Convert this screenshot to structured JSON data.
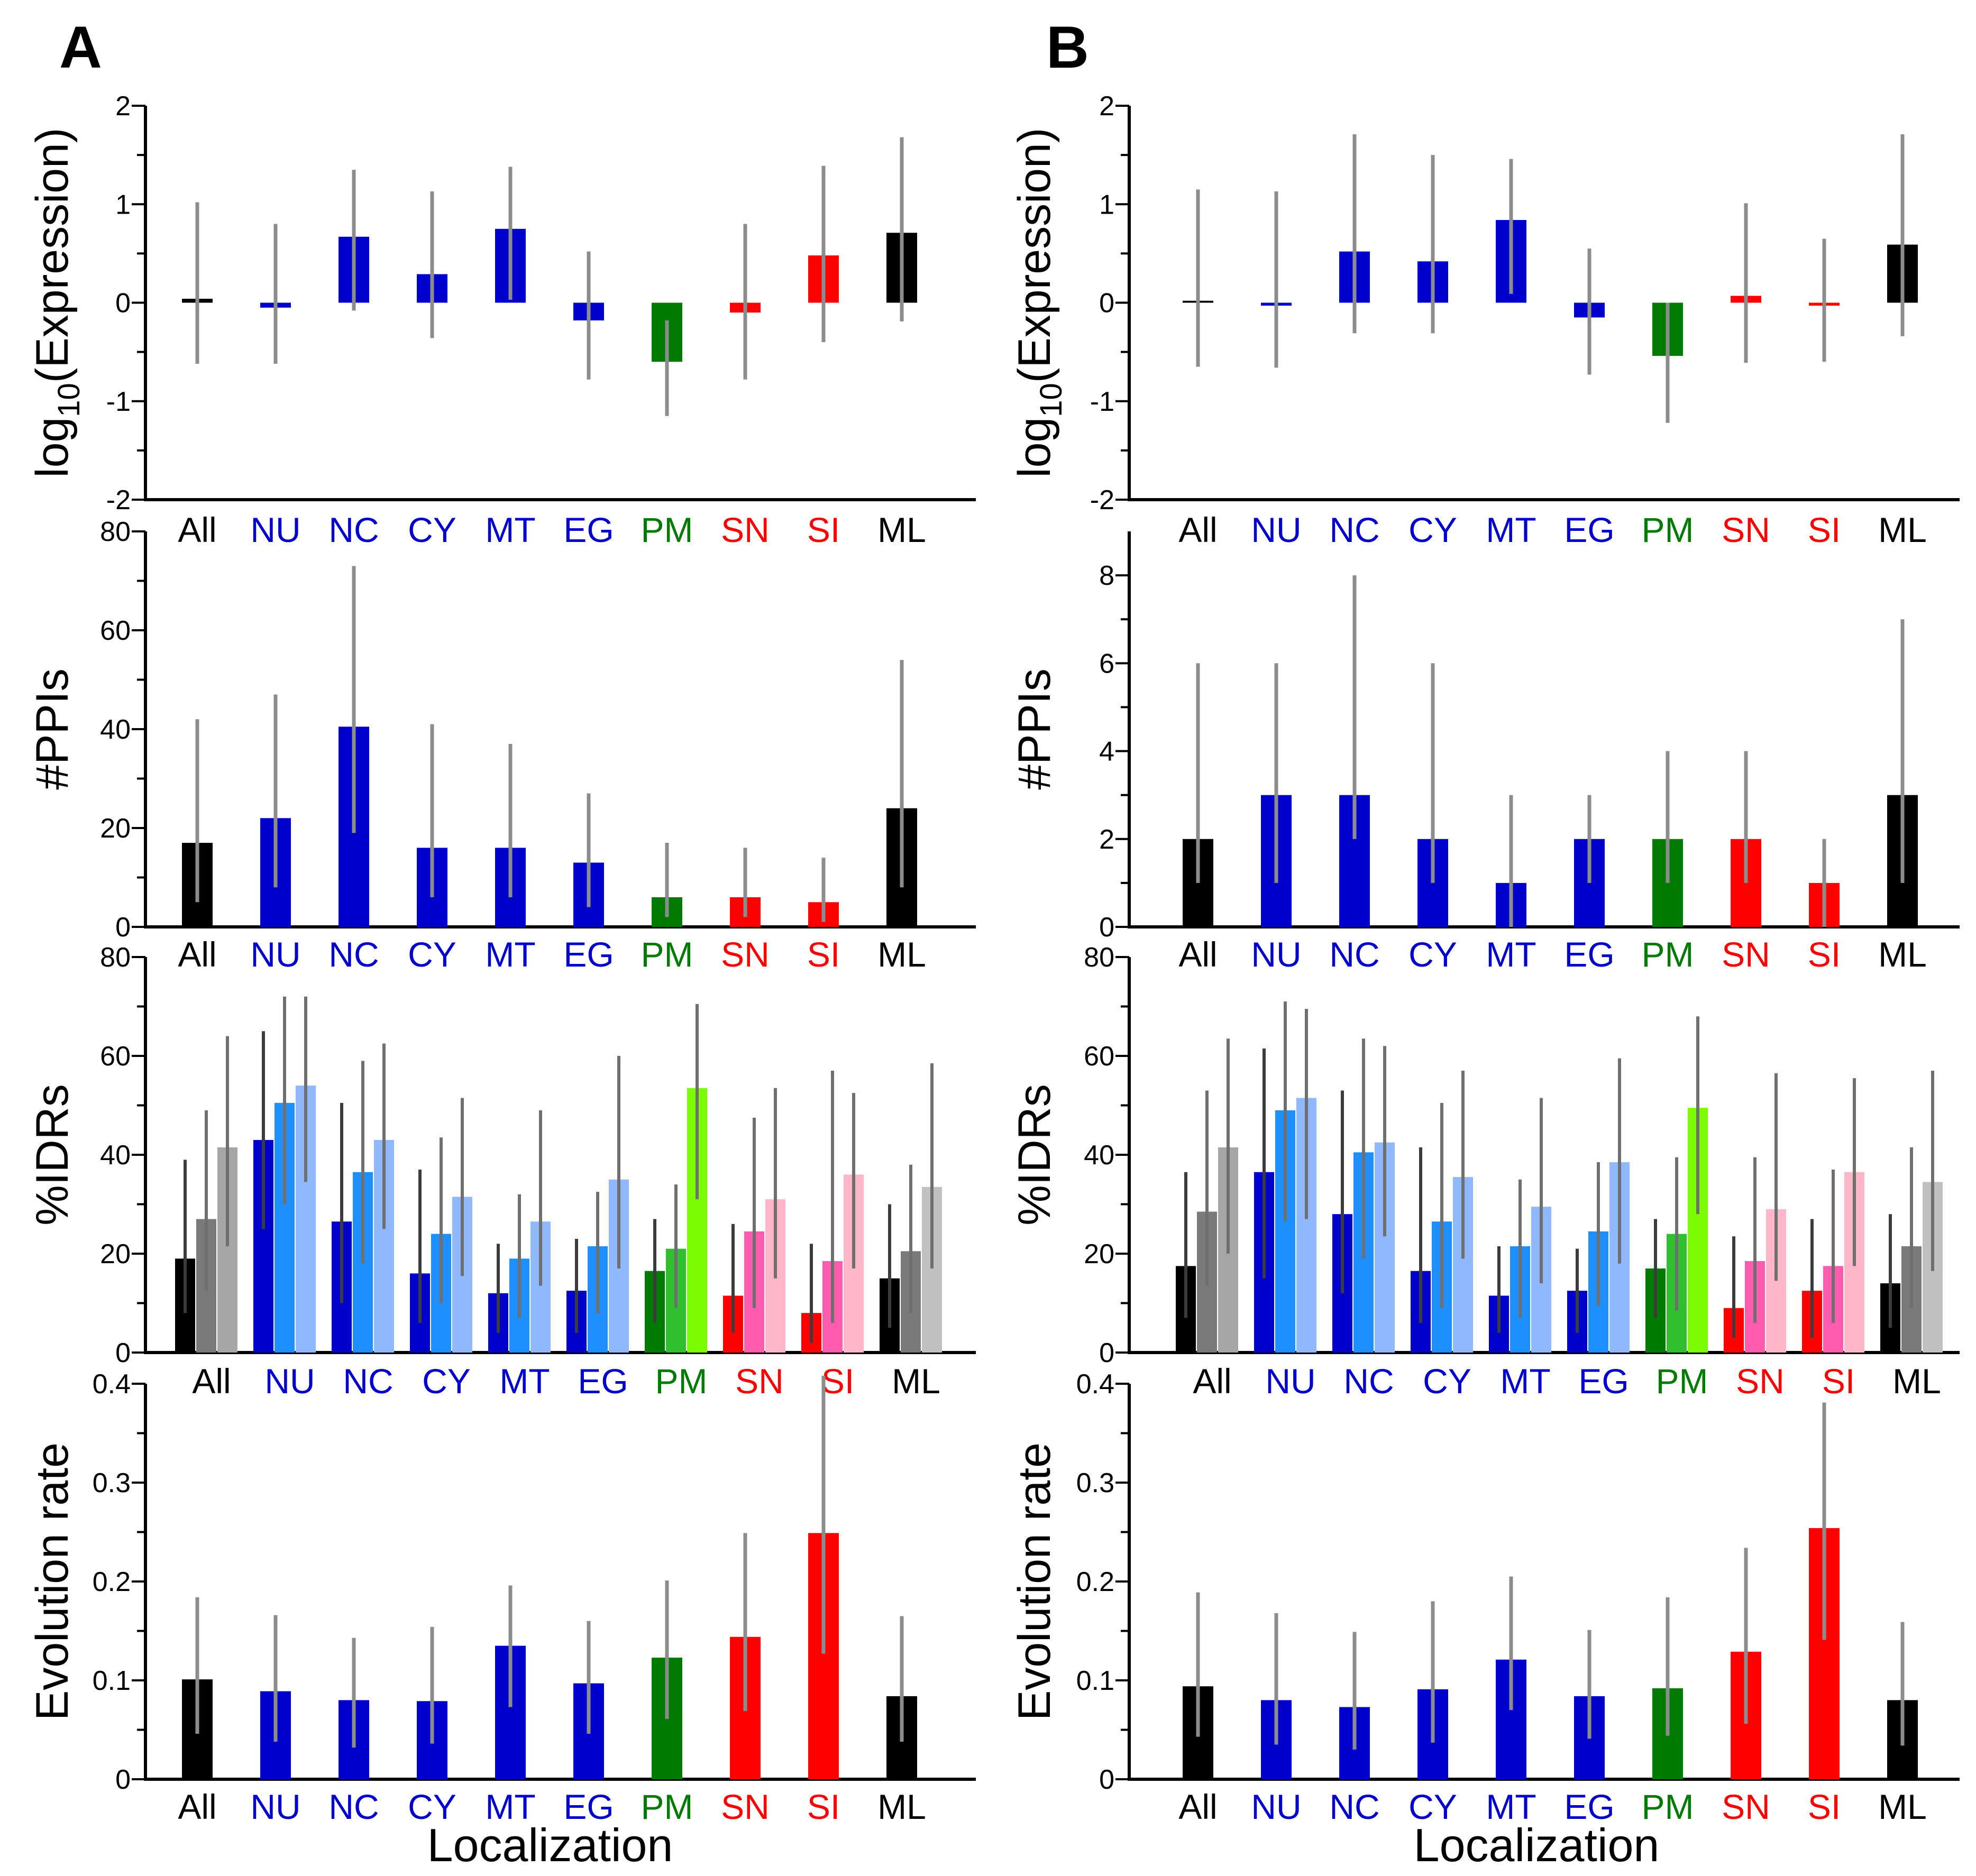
{
  "panel_labels": [
    "A",
    "B"
  ],
  "categories": [
    "All",
    "NU",
    "NC",
    "CY",
    "MT",
    "EG",
    "PM",
    "SN",
    "SI",
    "ML"
  ],
  "category_colors": [
    "#000000",
    "#0000cc",
    "#0000cc",
    "#0000cc",
    "#0000cc",
    "#0000cc",
    "#007a00",
    "#ff0000",
    "#ff0000",
    "#000000"
  ],
  "bar_colors": [
    "#000000",
    "#0000cc",
    "#0000cc",
    "#0000cc",
    "#0000cc",
    "#0000cc",
    "#007a00",
    "#ff0000",
    "#ff0000",
    "#000000"
  ],
  "idr_shades": [
    [
      "#000000",
      "#7a7a7a",
      "#a6a6a6"
    ],
    [
      "#0000cc",
      "#1e8fff",
      "#8fb8ff"
    ],
    [
      "#0000cc",
      "#1e8fff",
      "#8fb8ff"
    ],
    [
      "#0000cc",
      "#1e8fff",
      "#8fb8ff"
    ],
    [
      "#0000cc",
      "#1e8fff",
      "#8fb8ff"
    ],
    [
      "#0000cc",
      "#1e8fff",
      "#8fb8ff"
    ],
    [
      "#007a00",
      "#2fbf2f",
      "#7cfc00"
    ],
    [
      "#ff0000",
      "#ff5cb0",
      "#ffb6c8"
    ],
    [
      "#ff0000",
      "#ff5cb0",
      "#ffb6c8"
    ],
    [
      "#000000",
      "#7a7a7a",
      "#c0c0c0"
    ]
  ],
  "xlabel": "Localization",
  "chart_data": [
    {
      "panel": "A",
      "type": "bar",
      "title": "",
      "ylabel": "log10(Expression)",
      "ylim": [
        -2,
        2
      ],
      "yticks": [
        -2,
        -1,
        0,
        1,
        2
      ],
      "ytick_labels": [
        "-2",
        "-1",
        "0",
        "1",
        "2"
      ],
      "values": [
        0.04,
        -0.05,
        0.67,
        0.29,
        0.75,
        -0.18,
        -0.6,
        -0.1,
        0.48,
        0.71
      ],
      "err_low": [
        -0.62,
        -0.62,
        -0.08,
        -0.36,
        0.03,
        -0.78,
        -1.15,
        -0.78,
        -0.4,
        -0.19
      ],
      "err_high": [
        1.02,
        0.8,
        1.35,
        1.13,
        1.38,
        0.52,
        -0.18,
        0.8,
        1.39,
        1.68
      ]
    },
    {
      "panel": "B",
      "type": "bar",
      "title": "",
      "ylabel": "log10(Expression)",
      "ylim": [
        -2,
        2
      ],
      "yticks": [
        -2,
        -1,
        0,
        1,
        2
      ],
      "ytick_labels": [
        "-2",
        "-1",
        "0",
        "1",
        "2"
      ],
      "values": [
        0.02,
        -0.03,
        0.52,
        0.42,
        0.84,
        -0.15,
        -0.54,
        0.07,
        -0.03,
        0.59
      ],
      "err_low": [
        -0.65,
        -0.66,
        -0.31,
        -0.31,
        0.09,
        -0.73,
        -1.22,
        -0.61,
        -0.6,
        -0.34
      ],
      "err_high": [
        1.15,
        1.13,
        1.71,
        1.5,
        1.46,
        0.55,
        0.0,
        1.01,
        0.65,
        1.71
      ]
    },
    {
      "panel": "A",
      "type": "bar",
      "title": "",
      "ylabel": "#PPIs",
      "ylim": [
        0,
        80
      ],
      "yticks": [
        0,
        20,
        40,
        60,
        80
      ],
      "ytick_labels": [
        "0",
        "20",
        "40",
        "60",
        "80"
      ],
      "values": [
        17,
        22,
        40.5,
        16,
        16,
        13,
        6,
        6,
        5,
        24
      ],
      "err_low": [
        5,
        8,
        19,
        6,
        6,
        4,
        2,
        2,
        1,
        8
      ],
      "err_high": [
        42,
        47,
        73,
        41,
        37,
        27,
        17,
        16,
        14,
        54
      ]
    },
    {
      "panel": "B",
      "type": "bar",
      "title": "",
      "ylabel": "#PPIs",
      "ylim": [
        0,
        9
      ],
      "yticks": [
        0,
        2,
        4,
        6,
        8
      ],
      "ytick_labels": [
        "0",
        "2",
        "4",
        "6",
        "8"
      ],
      "values": [
        2,
        3,
        3,
        2,
        1,
        2,
        2,
        2,
        1,
        3
      ],
      "err_low": [
        1,
        1,
        2,
        1,
        0,
        1,
        1,
        1,
        0,
        1
      ],
      "err_high": [
        6,
        6,
        8,
        6,
        3,
        3,
        4,
        4,
        2,
        7
      ]
    },
    {
      "panel": "A",
      "type": "grouped_bar",
      "title": "",
      "ylabel": "%IDRs",
      "ylim": [
        0,
        80
      ],
      "yticks": [
        0,
        20,
        40,
        60,
        80
      ],
      "ytick_labels": [
        "0",
        "20",
        "40",
        "60",
        "80"
      ],
      "series": [
        {
          "values": [
            19,
            43,
            26.5,
            16,
            12,
            12.5,
            16.5,
            11.5,
            8,
            15
          ],
          "err_low": [
            8,
            25,
            10,
            6,
            4,
            4,
            6,
            4,
            2,
            5
          ],
          "err_high": [
            39,
            65,
            50.5,
            37,
            22,
            23,
            27,
            26,
            22,
            30
          ]
        },
        {
          "values": [
            27,
            50.5,
            36.5,
            24,
            19,
            21.5,
            21,
            24.5,
            18.5,
            20.5
          ],
          "err_low": [
            12.5,
            30,
            18,
            10,
            7,
            8,
            9,
            9,
            6,
            8
          ],
          "err_high": [
            49,
            72,
            59,
            43.5,
            32,
            32.5,
            34,
            47.5,
            57,
            38
          ]
        },
        {
          "values": [
            41.5,
            54,
            43,
            31.5,
            26.5,
            35,
            53.5,
            31,
            36,
            33.5
          ],
          "err_low": [
            21.5,
            34.5,
            25,
            15.5,
            13.5,
            17,
            31,
            15,
            17,
            17
          ],
          "err_high": [
            64,
            72,
            62.5,
            51.5,
            49,
            60,
            70.5,
            53.5,
            52.5,
            58.5
          ]
        }
      ]
    },
    {
      "panel": "B",
      "type": "grouped_bar",
      "title": "",
      "ylabel": "%IDRs",
      "ylim": [
        0,
        80
      ],
      "yticks": [
        0,
        20,
        40,
        60,
        80
      ],
      "ytick_labels": [
        "0",
        "20",
        "40",
        "60",
        "80"
      ],
      "series": [
        {
          "values": [
            17.5,
            36.5,
            28,
            16.5,
            11.5,
            12.5,
            17,
            9,
            12.5,
            14
          ],
          "err_low": [
            7,
            15,
            12,
            6,
            4,
            4,
            7,
            3,
            3,
            5
          ],
          "err_high": [
            36.5,
            61.5,
            53,
            41.5,
            21.5,
            21,
            27,
            23.5,
            27,
            28
          ]
        },
        {
          "values": [
            28.5,
            49,
            40.5,
            26.5,
            21.5,
            24.5,
            24,
            18.5,
            17.5,
            21.5
          ],
          "err_low": [
            13.5,
            26.5,
            19,
            9,
            7,
            9.5,
            8.5,
            6,
            6,
            9
          ],
          "err_high": [
            53,
            71,
            63.5,
            50.5,
            35,
            38.5,
            39.5,
            39.5,
            37,
            41.5
          ]
        },
        {
          "values": [
            41.5,
            51.5,
            42.5,
            35.5,
            29.5,
            38.5,
            49.5,
            29,
            36.5,
            34.5
          ],
          "err_low": [
            20,
            27,
            23.5,
            19,
            14,
            18,
            28,
            14.5,
            17.5,
            16.5
          ],
          "err_high": [
            63.5,
            69.5,
            62,
            57,
            51.5,
            59.5,
            68,
            56.5,
            55.5,
            57
          ]
        }
      ]
    },
    {
      "panel": "A",
      "type": "bar",
      "title": "",
      "ylabel": "Evolution rate",
      "ylim": [
        0,
        0.4
      ],
      "yticks": [
        0,
        0.1,
        0.2,
        0.3,
        0.4
      ],
      "ytick_labels": [
        "0",
        "0.1",
        "0.2",
        "0.3",
        "0.4"
      ],
      "values": [
        0.101,
        0.089,
        0.08,
        0.079,
        0.135,
        0.097,
        0.123,
        0.144,
        0.249,
        0.084
      ],
      "err_low": [
        0.046,
        0.038,
        0.032,
        0.036,
        0.073,
        0.046,
        0.061,
        0.069,
        0.127,
        0.038
      ],
      "err_high": [
        0.184,
        0.166,
        0.143,
        0.154,
        0.196,
        0.16,
        0.201,
        0.249,
        0.408,
        0.165
      ]
    },
    {
      "panel": "B",
      "type": "bar",
      "title": "",
      "ylabel": "Evolution rate",
      "ylim": [
        0,
        0.4
      ],
      "yticks": [
        0,
        0.1,
        0.2,
        0.3,
        0.4
      ],
      "ytick_labels": [
        "0",
        "0.1",
        "0.2",
        "0.3",
        "0.4"
      ],
      "values": [
        0.094,
        0.08,
        0.073,
        0.091,
        0.121,
        0.084,
        0.092,
        0.129,
        0.254,
        0.08
      ],
      "err_low": [
        0.043,
        0.035,
        0.03,
        0.037,
        0.07,
        0.041,
        0.044,
        0.056,
        0.141,
        0.034
      ],
      "err_high": [
        0.189,
        0.168,
        0.149,
        0.18,
        0.205,
        0.151,
        0.184,
        0.234,
        0.381,
        0.159
      ]
    }
  ]
}
